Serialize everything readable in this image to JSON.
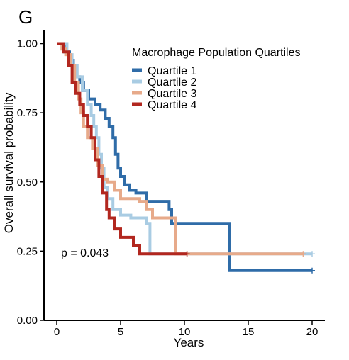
{
  "chart_data": {
    "type": "line",
    "panel_label": "G",
    "xlabel": "Years",
    "ylabel": "Overall survival probability",
    "xlim": [
      -1,
      21
    ],
    "ylim": [
      0,
      1.05
    ],
    "x_ticks": [
      0,
      5,
      10,
      15,
      20
    ],
    "x_tick_labels": [
      "0",
      "5",
      "10",
      "15",
      "20"
    ],
    "y_ticks": [
      0.0,
      0.25,
      0.5,
      0.75,
      1.0
    ],
    "y_tick_labels": [
      "0.00",
      "0.25",
      "0.50",
      "0.75",
      "1.00"
    ],
    "grid": false,
    "legend_title": "Macrophage Population Quartiles",
    "legend_position": "top-right",
    "annotation": "p = 0.043",
    "series": [
      {
        "name": "Quartile 1",
        "color": "#2F6CA8",
        "points": [
          [
            0,
            1.0
          ],
          [
            0.6,
            0.97
          ],
          [
            1.0,
            0.94
          ],
          [
            1.3,
            0.91
          ],
          [
            1.5,
            0.88
          ],
          [
            1.8,
            0.86
          ],
          [
            2.1,
            0.83
          ],
          [
            2.5,
            0.8
          ],
          [
            3.0,
            0.78
          ],
          [
            3.4,
            0.76
          ],
          [
            3.8,
            0.73
          ],
          [
            4.1,
            0.7
          ],
          [
            4.4,
            0.66
          ],
          [
            4.6,
            0.6
          ],
          [
            4.8,
            0.55
          ],
          [
            5.0,
            0.52
          ],
          [
            5.3,
            0.49
          ],
          [
            5.7,
            0.47
          ],
          [
            6.2,
            0.46
          ],
          [
            7.0,
            0.43
          ],
          [
            8.8,
            0.4
          ],
          [
            9.0,
            0.35
          ],
          [
            13.5,
            0.35
          ],
          [
            13.5,
            0.18
          ],
          [
            20.0,
            0.18
          ]
        ]
      },
      {
        "name": "Quartile 2",
        "color": "#A9CCE3",
        "points": [
          [
            0,
            1.0
          ],
          [
            0.8,
            0.96
          ],
          [
            1.2,
            0.92
          ],
          [
            1.6,
            0.88
          ],
          [
            2.0,
            0.83
          ],
          [
            2.4,
            0.78
          ],
          [
            2.7,
            0.74
          ],
          [
            2.9,
            0.7
          ],
          [
            3.1,
            0.66
          ],
          [
            3.3,
            0.6
          ],
          [
            3.5,
            0.55
          ],
          [
            3.7,
            0.48
          ],
          [
            4.0,
            0.44
          ],
          [
            4.4,
            0.4
          ],
          [
            5.0,
            0.38
          ],
          [
            5.8,
            0.37
          ],
          [
            7.0,
            0.35
          ],
          [
            7.3,
            0.24
          ],
          [
            20.0,
            0.24
          ]
        ]
      },
      {
        "name": "Quartile 3",
        "color": "#E7AA8A",
        "points": [
          [
            0,
            1.0
          ],
          [
            0.4,
            0.98
          ],
          [
            0.7,
            0.96
          ],
          [
            1.1,
            0.92
          ],
          [
            1.4,
            0.86
          ],
          [
            1.7,
            0.8
          ],
          [
            1.9,
            0.75
          ],
          [
            2.1,
            0.7
          ],
          [
            2.4,
            0.66
          ],
          [
            2.8,
            0.62
          ],
          [
            3.2,
            0.56
          ],
          [
            3.6,
            0.51
          ],
          [
            4.0,
            0.5
          ],
          [
            4.5,
            0.47
          ],
          [
            5.0,
            0.44
          ],
          [
            6.5,
            0.43
          ],
          [
            7.0,
            0.4
          ],
          [
            7.5,
            0.37
          ],
          [
            9.2,
            0.37
          ],
          [
            9.3,
            0.24
          ],
          [
            19.3,
            0.24
          ]
        ]
      },
      {
        "name": "Quartile 4",
        "color": "#B2271F",
        "points": [
          [
            0,
            1.0
          ],
          [
            0.5,
            0.97
          ],
          [
            0.9,
            0.92
          ],
          [
            1.2,
            0.86
          ],
          [
            1.5,
            0.82
          ],
          [
            1.8,
            0.78
          ],
          [
            2.1,
            0.74
          ],
          [
            2.4,
            0.7
          ],
          [
            2.7,
            0.66
          ],
          [
            3.0,
            0.58
          ],
          [
            3.3,
            0.52
          ],
          [
            3.6,
            0.46
          ],
          [
            3.9,
            0.4
          ],
          [
            4.1,
            0.37
          ],
          [
            4.5,
            0.33
          ],
          [
            5.0,
            0.3
          ],
          [
            6.0,
            0.27
          ],
          [
            6.5,
            0.24
          ],
          [
            10.2,
            0.24
          ]
        ]
      }
    ]
  }
}
